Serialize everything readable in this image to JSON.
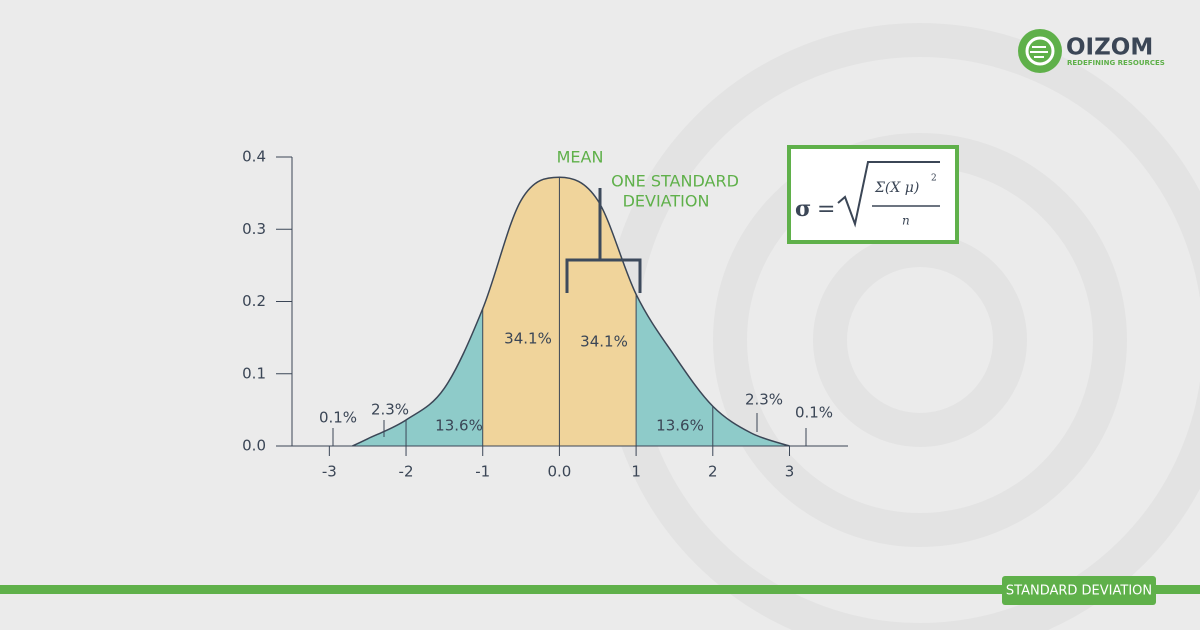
{
  "chart_data": {
    "type": "area",
    "annotations": [
      "MEAN",
      "ONE STANDARD",
      "DEVIATION"
    ],
    "region_labels": [
      "0.1%",
      "2.3%",
      "13.6%",
      "34.1%",
      "34.1%",
      "13.6%",
      "2.3%",
      "0.1%"
    ],
    "x": [
      -2.7,
      -2.5,
      -2,
      -1.5,
      -1,
      -0.5,
      0,
      0.5,
      1,
      1.5,
      2,
      2.5,
      3
    ],
    "values": [
      0,
      0.01,
      0.036,
      0.08,
      0.19,
      0.34,
      0.372,
      0.34,
      0.21,
      0.125,
      0.055,
      0.018,
      0
    ],
    "color": "#3b4656",
    "shading": [
      {
        "from": -3,
        "to": -1,
        "color": "#8ecbc9"
      },
      {
        "from": -1,
        "to": 1,
        "color": "#f0d49b"
      },
      {
        "from": 1,
        "to": 3,
        "color": "#8ecbc9"
      }
    ],
    "xlim": [
      -3.5,
      3.75
    ],
    "ylim": [
      0,
      0.4
    ],
    "xticks": [
      -3,
      -2,
      -1,
      {
        "value": 0,
        "label": "0.0"
      },
      1,
      2,
      3
    ],
    "yticks": [
      {
        "value": 0,
        "label": "0.0"
      },
      0.1,
      0.2,
      0.3,
      0.4
    ]
  },
  "formula": {
    "lhs": "σ",
    "equals": "=",
    "numerator": "Σ(X  μ)",
    "exponent": "2",
    "denominator": "n"
  },
  "logo": {
    "name": "OIZOM",
    "tagline": "REDEFINING RESOURCES"
  },
  "footer": {
    "tag": "STANDARD DEVIATION"
  }
}
